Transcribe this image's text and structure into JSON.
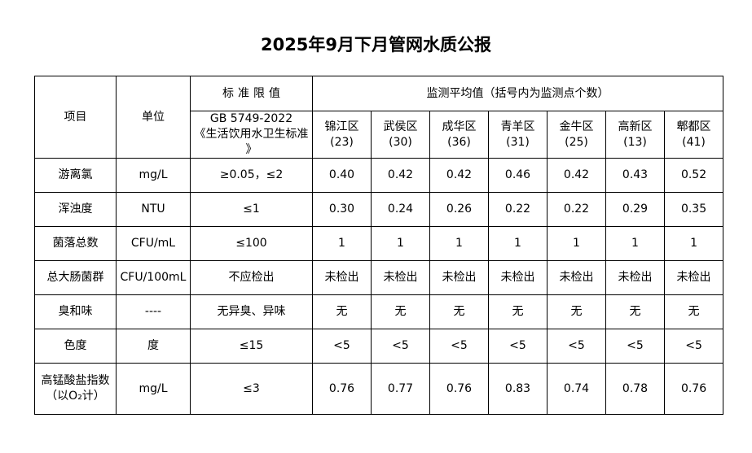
{
  "page": {
    "title": "2025年9月下月管网水质公报"
  },
  "table": {
    "headers": {
      "item": "项目",
      "unit": "单位",
      "standard": "标准限值",
      "standard_sub": "GB 5749-2022\n《生活饮用水卫生标准\n》",
      "monitoring": "监测平均值（括号内为监测点个数）"
    },
    "districts": [
      {
        "name": "锦江区",
        "count": "(23)"
      },
      {
        "name": "武侯区",
        "count": "(30)"
      },
      {
        "name": "成华区",
        "count": "(36)"
      },
      {
        "name": "青羊区",
        "count": "(31)"
      },
      {
        "name": "金牛区",
        "count": "(25)"
      },
      {
        "name": "高新区",
        "count": "(13)"
      },
      {
        "name": "郫都区",
        "count": "(41)"
      }
    ],
    "rows": [
      {
        "label": "游离氯",
        "unit": "mg/L",
        "standard": "≥0.05，≤2",
        "values": [
          "0.40",
          "0.42",
          "0.42",
          "0.46",
          "0.42",
          "0.43",
          "0.52"
        ]
      },
      {
        "label": "浑浊度",
        "unit": "NTU",
        "standard": "≤1",
        "values": [
          "0.30",
          "0.24",
          "0.26",
          "0.22",
          "0.22",
          "0.29",
          "0.35"
        ]
      },
      {
        "label": "菌落总数",
        "unit": "CFU/mL",
        "standard": "≤100",
        "values": [
          "1",
          "1",
          "1",
          "1",
          "1",
          "1",
          "1"
        ]
      },
      {
        "label": "总大肠菌群",
        "unit": "CFU/100mL",
        "standard": "不应检出",
        "values": [
          "未检出",
          "未检出",
          "未检出",
          "未检出",
          "未检出",
          "未检出",
          "未检出"
        ]
      },
      {
        "label": "臭和味",
        "unit": "----",
        "standard": "无异臭、异味",
        "values": [
          "无",
          "无",
          "无",
          "无",
          "无",
          "无",
          "无"
        ]
      },
      {
        "label": "色度",
        "unit": "度",
        "standard": "≤15",
        "values": [
          "<5",
          "<5",
          "<5",
          "<5",
          "<5",
          "<5",
          "<5"
        ]
      },
      {
        "label": "高锰酸盐指数\n（以O₂计）",
        "unit": "mg/L",
        "standard": "≤3",
        "values": [
          "0.76",
          "0.77",
          "0.76",
          "0.83",
          "0.74",
          "0.78",
          "0.76"
        ]
      }
    ]
  }
}
